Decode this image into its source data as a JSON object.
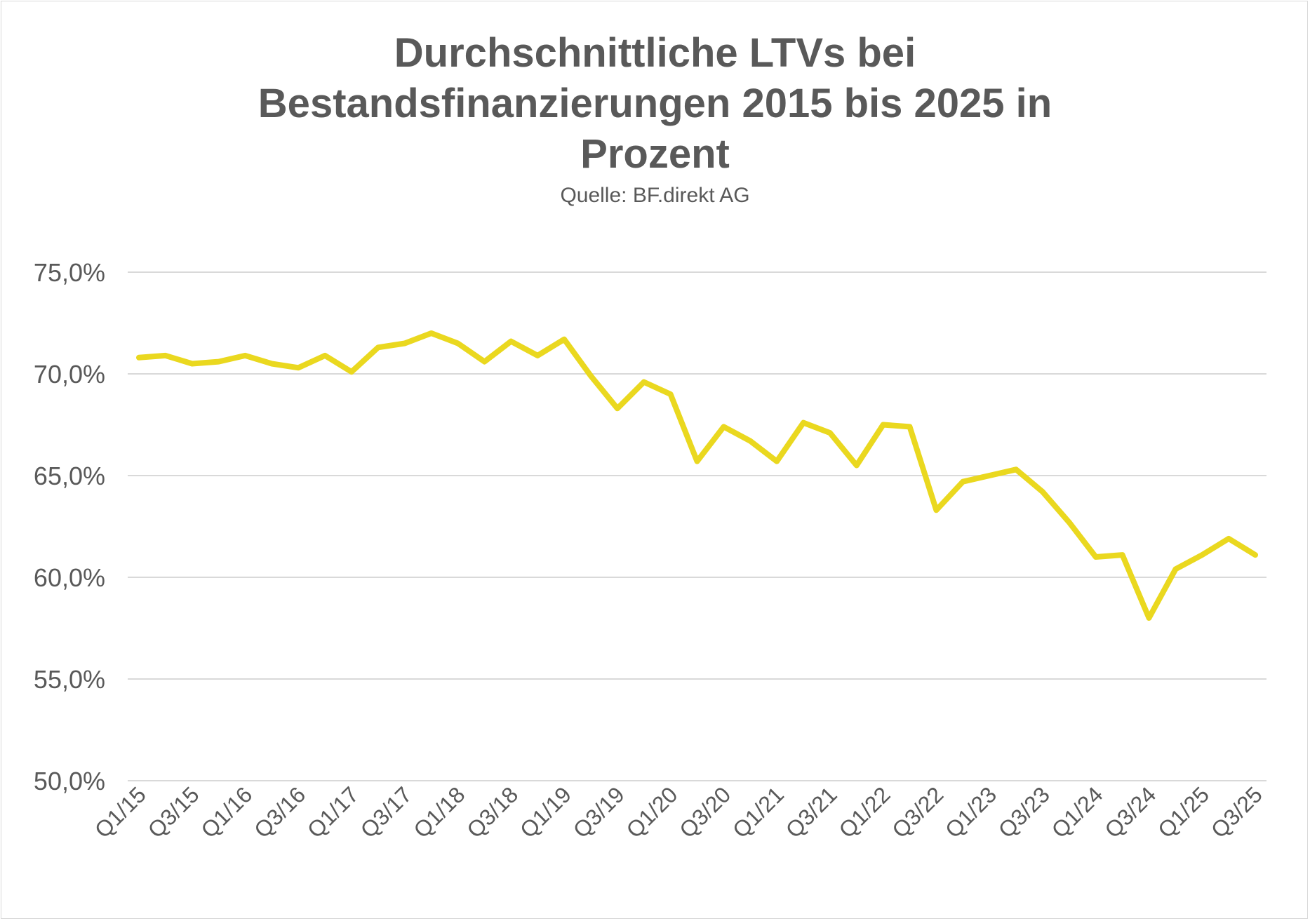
{
  "chart_data": {
    "type": "line",
    "title": "Durchschnittliche LTVs bei Bestandsfinanzierungen 2015 bis 2025 in Prozent",
    "title_lines": [
      "Durchschnittliche LTVs bei",
      "Bestandsfinanzierungen 2015 bis 2025 in",
      "Prozent"
    ],
    "subtitle": "Quelle: BF.direkt AG",
    "xlabel": "",
    "ylabel": "",
    "ylim": [
      50,
      75
    ],
    "yticks": [
      75,
      70,
      65,
      60,
      55,
      50
    ],
    "ytick_labels": [
      "75,0%",
      "70,0%",
      "65,0%",
      "60,0%",
      "55,0%",
      "50,0%"
    ],
    "grid": true,
    "legend": "none",
    "line_color": "#ead81f",
    "categories": [
      "Q1/15",
      "Q2/15",
      "Q3/15",
      "Q4/15",
      "Q1/16",
      "Q2/16",
      "Q3/16",
      "Q4/16",
      "Q1/17",
      "Q2/17",
      "Q3/17",
      "Q4/17",
      "Q1/18",
      "Q2/18",
      "Q3/18",
      "Q4/18",
      "Q1/19",
      "Q2/19",
      "Q3/19",
      "Q4/19",
      "Q1/20",
      "Q2/20",
      "Q3/20",
      "Q4/20",
      "Q1/21",
      "Q2/21",
      "Q3/21",
      "Q4/21",
      "Q1/22",
      "Q2/22",
      "Q3/22",
      "Q4/22",
      "Q1/23",
      "Q2/23",
      "Q3/23",
      "Q4/23",
      "Q1/24",
      "Q2/24",
      "Q3/24",
      "Q4/24",
      "Q1/25",
      "Q2/25",
      "Q3/25"
    ],
    "xtick_labels": [
      "Q1/15",
      "Q3/15",
      "Q1/16",
      "Q3/16",
      "Q1/17",
      "Q3/17",
      "Q1/18",
      "Q3/18",
      "Q1/19",
      "Q3/19",
      "Q1/20",
      "Q3/20",
      "Q1/21",
      "Q3/21",
      "Q1/22",
      "Q3/22",
      "Q1/23",
      "Q3/23",
      "Q1/24",
      "Q3/24",
      "Q1/25",
      "Q3/25"
    ],
    "series": [
      {
        "values": [
          70.8,
          70.9,
          70.5,
          70.6,
          70.9,
          70.5,
          70.3,
          70.9,
          70.1,
          71.3,
          71.5,
          72.0,
          71.5,
          70.6,
          71.6,
          70.9,
          71.7,
          69.9,
          68.3,
          69.6,
          69.0,
          65.7,
          67.4,
          66.7,
          65.7,
          67.6,
          67.1,
          65.5,
          67.5,
          67.4,
          63.3,
          64.7,
          65.0,
          65.3,
          64.2,
          62.7,
          61.0,
          61.1,
          58.0,
          60.4,
          61.1,
          61.9,
          61.1
        ]
      }
    ]
  }
}
